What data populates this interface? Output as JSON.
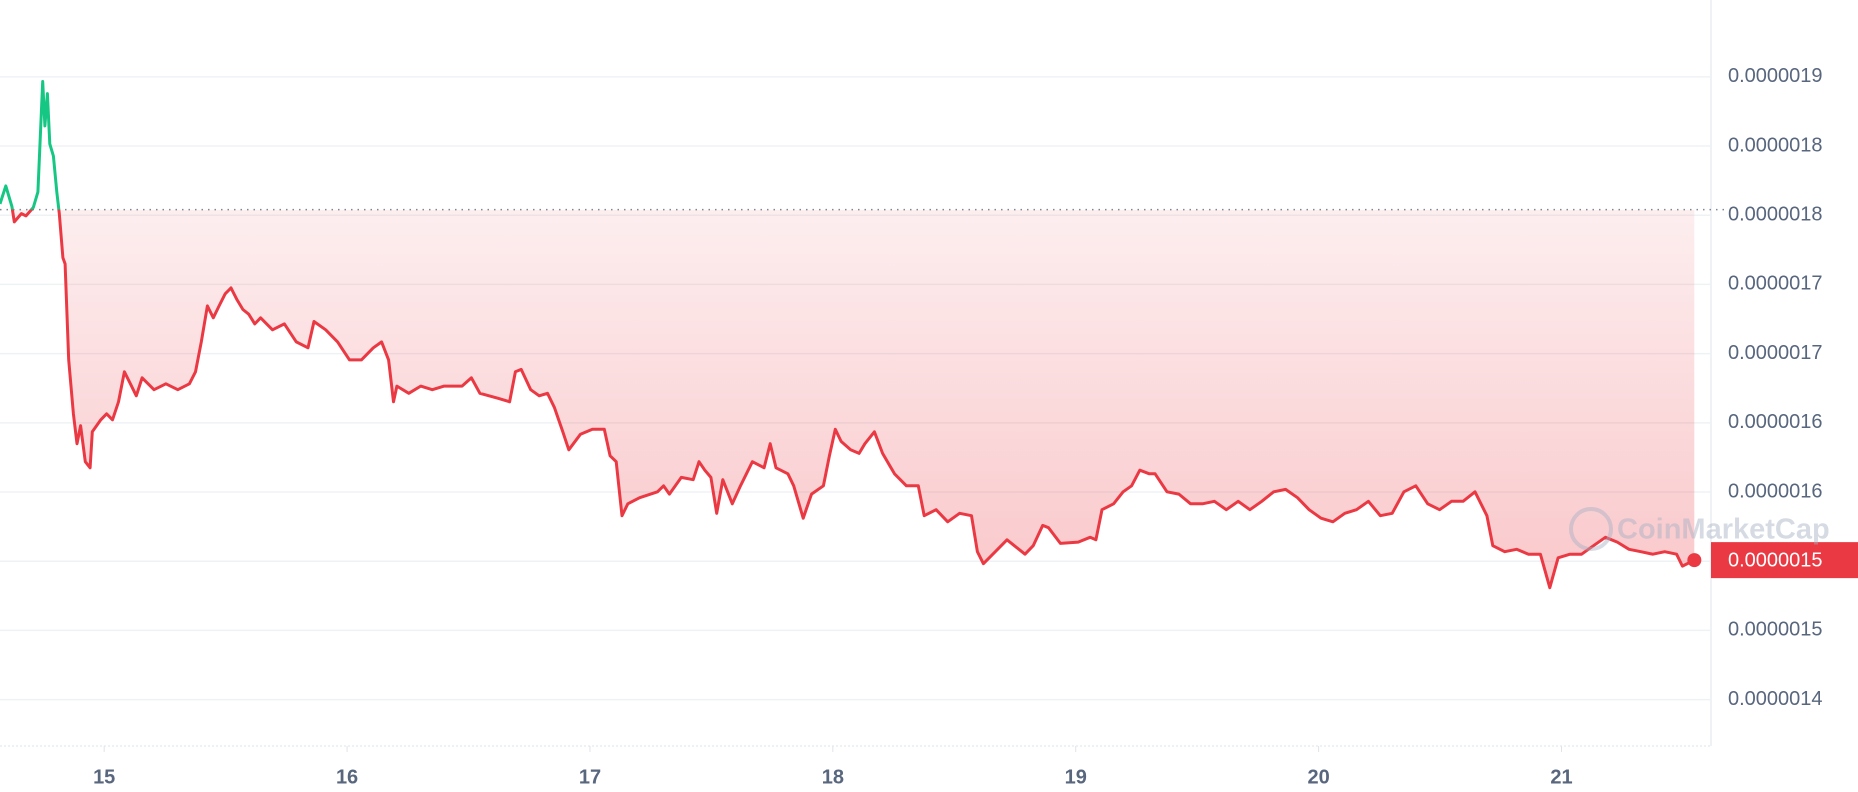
{
  "chart_data": {
    "type": "line",
    "color": "#ea3943",
    "color_above": "#16c784",
    "reference": 1.774e-06,
    "price_tag": "0.0000015",
    "watermark": "CoinMarketCap",
    "grid": true,
    "xlim": [
      14.571,
      21.595
    ],
    "xticks": [
      15,
      16,
      17,
      18,
      19,
      20,
      21
    ],
    "ylim": [
      1.3865e-06,
      1.9255e-06
    ],
    "yticks": [
      {
        "value": 1.87e-06,
        "label": "0.0000019"
      },
      {
        "value": 1.82e-06,
        "label": "0.0000018"
      },
      {
        "value": 1.77e-06,
        "label": "0.0000018"
      },
      {
        "value": 1.72e-06,
        "label": "0.0000017"
      },
      {
        "value": 1.67e-06,
        "label": "0.0000017"
      },
      {
        "value": 1.62e-06,
        "label": "0.0000016"
      },
      {
        "value": 1.57e-06,
        "label": "0.0000016"
      },
      {
        "value": 1.52e-06,
        "label": "0.0000015"
      },
      {
        "value": 1.47e-06,
        "label": "0.0000015"
      },
      {
        "value": 1.42e-06,
        "label": "0.0000014"
      }
    ],
    "x": [
      14.571,
      14.595,
      14.62,
      14.63,
      14.659,
      14.678,
      14.708,
      14.727,
      14.747,
      14.756,
      14.766,
      14.776,
      14.791,
      14.805,
      14.815,
      14.83,
      14.839,
      14.854,
      14.873,
      14.888,
      14.903,
      14.922,
      14.942,
      14.951,
      14.986,
      15.01,
      15.034,
      15.059,
      15.083,
      15.108,
      15.132,
      15.156,
      15.205,
      15.254,
      15.303,
      15.351,
      15.376,
      15.4,
      15.425,
      15.449,
      15.473,
      15.498,
      15.522,
      15.547,
      15.571,
      15.595,
      15.62,
      15.644,
      15.693,
      15.742,
      15.791,
      15.839,
      15.864,
      15.912,
      15.961,
      16.01,
      16.059,
      16.108,
      16.142,
      16.171,
      16.191,
      16.205,
      16.254,
      16.303,
      16.351,
      16.4,
      16.473,
      16.512,
      16.547,
      16.62,
      16.669,
      16.693,
      16.717,
      16.756,
      16.791,
      16.825,
      16.854,
      16.888,
      16.913,
      16.961,
      17.01,
      17.059,
      17.083,
      17.108,
      17.132,
      17.156,
      17.205,
      17.278,
      17.303,
      17.327,
      17.376,
      17.425,
      17.449,
      17.473,
      17.498,
      17.522,
      17.547,
      17.586,
      17.62,
      17.669,
      17.717,
      17.742,
      17.766,
      17.815,
      17.839,
      17.878,
      17.912,
      17.961,
      17.986,
      18.01,
      18.034,
      18.073,
      18.108,
      18.132,
      18.171,
      18.205,
      18.254,
      18.303,
      18.352,
      18.376,
      18.425,
      18.473,
      18.522,
      18.571,
      18.595,
      18.62,
      18.669,
      18.717,
      18.766,
      18.791,
      18.825,
      18.864,
      18.888,
      18.937,
      19.01,
      19.059,
      19.083,
      19.108,
      19.156,
      19.195,
      19.23,
      19.264,
      19.303,
      19.327,
      19.376,
      19.425,
      19.473,
      19.522,
      19.571,
      19.62,
      19.669,
      19.717,
      19.766,
      19.815,
      19.864,
      19.913,
      19.961,
      20.01,
      20.059,
      20.108,
      20.156,
      20.205,
      20.254,
      20.303,
      20.351,
      20.4,
      20.449,
      20.498,
      20.547,
      20.595,
      20.644,
      20.693,
      20.717,
      20.766,
      20.815,
      20.864,
      20.913,
      20.952,
      20.986,
      21.035,
      21.083,
      21.132,
      21.181,
      21.23,
      21.278,
      21.327,
      21.376,
      21.425,
      21.474,
      21.498,
      21.547
    ],
    "values": [
      1.7782e-06,
      1.7912e-06,
      1.7764e-06,
      1.7652e-06,
      1.7712e-06,
      1.7695e-06,
      1.7756e-06,
      1.7868e-06,
      1.8666e-06,
      1.8345e-06,
      1.8579e-06,
      1.8215e-06,
      1.8128e-06,
      1.7868e-06,
      1.7712e-06,
      1.7392e-06,
      1.7348e-06,
      1.6655e-06,
      1.6265e-06,
      1.6049e-06,
      1.6179e-06,
      1.5919e-06,
      1.5875e-06,
      1.6135e-06,
      1.6222e-06,
      1.6265e-06,
      1.6222e-06,
      1.6352e-06,
      1.6569e-06,
      1.6482e-06,
      1.6395e-06,
      1.6525e-06,
      1.6439e-06,
      1.6482e-06,
      1.6439e-06,
      1.6482e-06,
      1.6569e-06,
      1.6785e-06,
      1.7045e-06,
      1.6959e-06,
      1.7045e-06,
      1.7132e-06,
      1.7175e-06,
      1.7088e-06,
      1.7019e-06,
      1.6985e-06,
      1.6915e-06,
      1.6959e-06,
      1.6872e-06,
      1.6915e-06,
      1.6785e-06,
      1.6742e-06,
      1.6932e-06,
      1.6872e-06,
      1.6785e-06,
      1.6655e-06,
      1.6655e-06,
      1.6742e-06,
      1.6785e-06,
      1.6655e-06,
      1.6352e-06,
      1.6465e-06,
      1.6413e-06,
      1.6465e-06,
      1.6439e-06,
      1.6465e-06,
      1.6465e-06,
      1.6525e-06,
      1.6413e-06,
      1.6378e-06,
      1.6352e-06,
      1.6569e-06,
      1.6586e-06,
      1.6439e-06,
      1.6395e-06,
      1.6413e-06,
      1.6309e-06,
      1.6135e-06,
      1.6005e-06,
      1.6118e-06,
      1.6153e-06,
      1.6153e-06,
      1.5962e-06,
      1.5919e-06,
      1.5529e-06,
      1.5615e-06,
      1.5659e-06,
      1.5702e-06,
      1.5745e-06,
      1.5685e-06,
      1.5806e-06,
      1.5789e-06,
      1.5919e-06,
      1.5858e-06,
      1.5806e-06,
      1.5546e-06,
      1.5789e-06,
      1.5615e-06,
      1.5745e-06,
      1.5919e-06,
      1.5875e-06,
      1.6049e-06,
      1.5875e-06,
      1.5832e-06,
      1.5745e-06,
      1.5511e-06,
      1.5685e-06,
      1.5745e-06,
      1.5962e-06,
      1.6153e-06,
      1.6066e-06,
      1.6005e-06,
      1.5979e-06,
      1.6049e-06,
      1.6135e-06,
      1.5979e-06,
      1.5832e-06,
      1.5745e-06,
      1.5745e-06,
      1.5529e-06,
      1.5572e-06,
      1.5485e-06,
      1.5546e-06,
      1.5529e-06,
      1.5269e-06,
      1.5182e-06,
      1.5269e-06,
      1.5355e-06,
      1.5286e-06,
      1.5251e-06,
      1.5312e-06,
      1.5459e-06,
      1.5442e-06,
      1.5329e-06,
      1.5338e-06,
      1.5373e-06,
      1.5355e-06,
      1.5572e-06,
      1.5615e-06,
      1.5702e-06,
      1.5745e-06,
      1.5858e-06,
      1.5832e-06,
      1.5832e-06,
      1.5702e-06,
      1.5685e-06,
      1.5615e-06,
      1.5615e-06,
      1.5633e-06,
      1.5572e-06,
      1.5633e-06,
      1.5572e-06,
      1.5633e-06,
      1.5702e-06,
      1.5719e-06,
      1.5659e-06,
      1.5572e-06,
      1.5511e-06,
      1.5485e-06,
      1.5546e-06,
      1.5572e-06,
      1.5633e-06,
      1.5529e-06,
      1.5546e-06,
      1.5702e-06,
      1.5745e-06,
      1.5615e-06,
      1.5572e-06,
      1.5633e-06,
      1.5633e-06,
      1.5702e-06,
      1.5529e-06,
      1.5312e-06,
      1.5269e-06,
      1.5286e-06,
      1.5251e-06,
      1.5251e-06,
      1.5009e-06,
      1.5225e-06,
      1.5251e-06,
      1.5251e-06,
      1.5312e-06,
      1.5373e-06,
      1.5338e-06,
      1.5286e-06,
      1.5269e-06,
      1.5251e-06,
      1.5269e-06,
      1.5251e-06,
      1.5165e-06,
      1.5208e-06
    ]
  }
}
